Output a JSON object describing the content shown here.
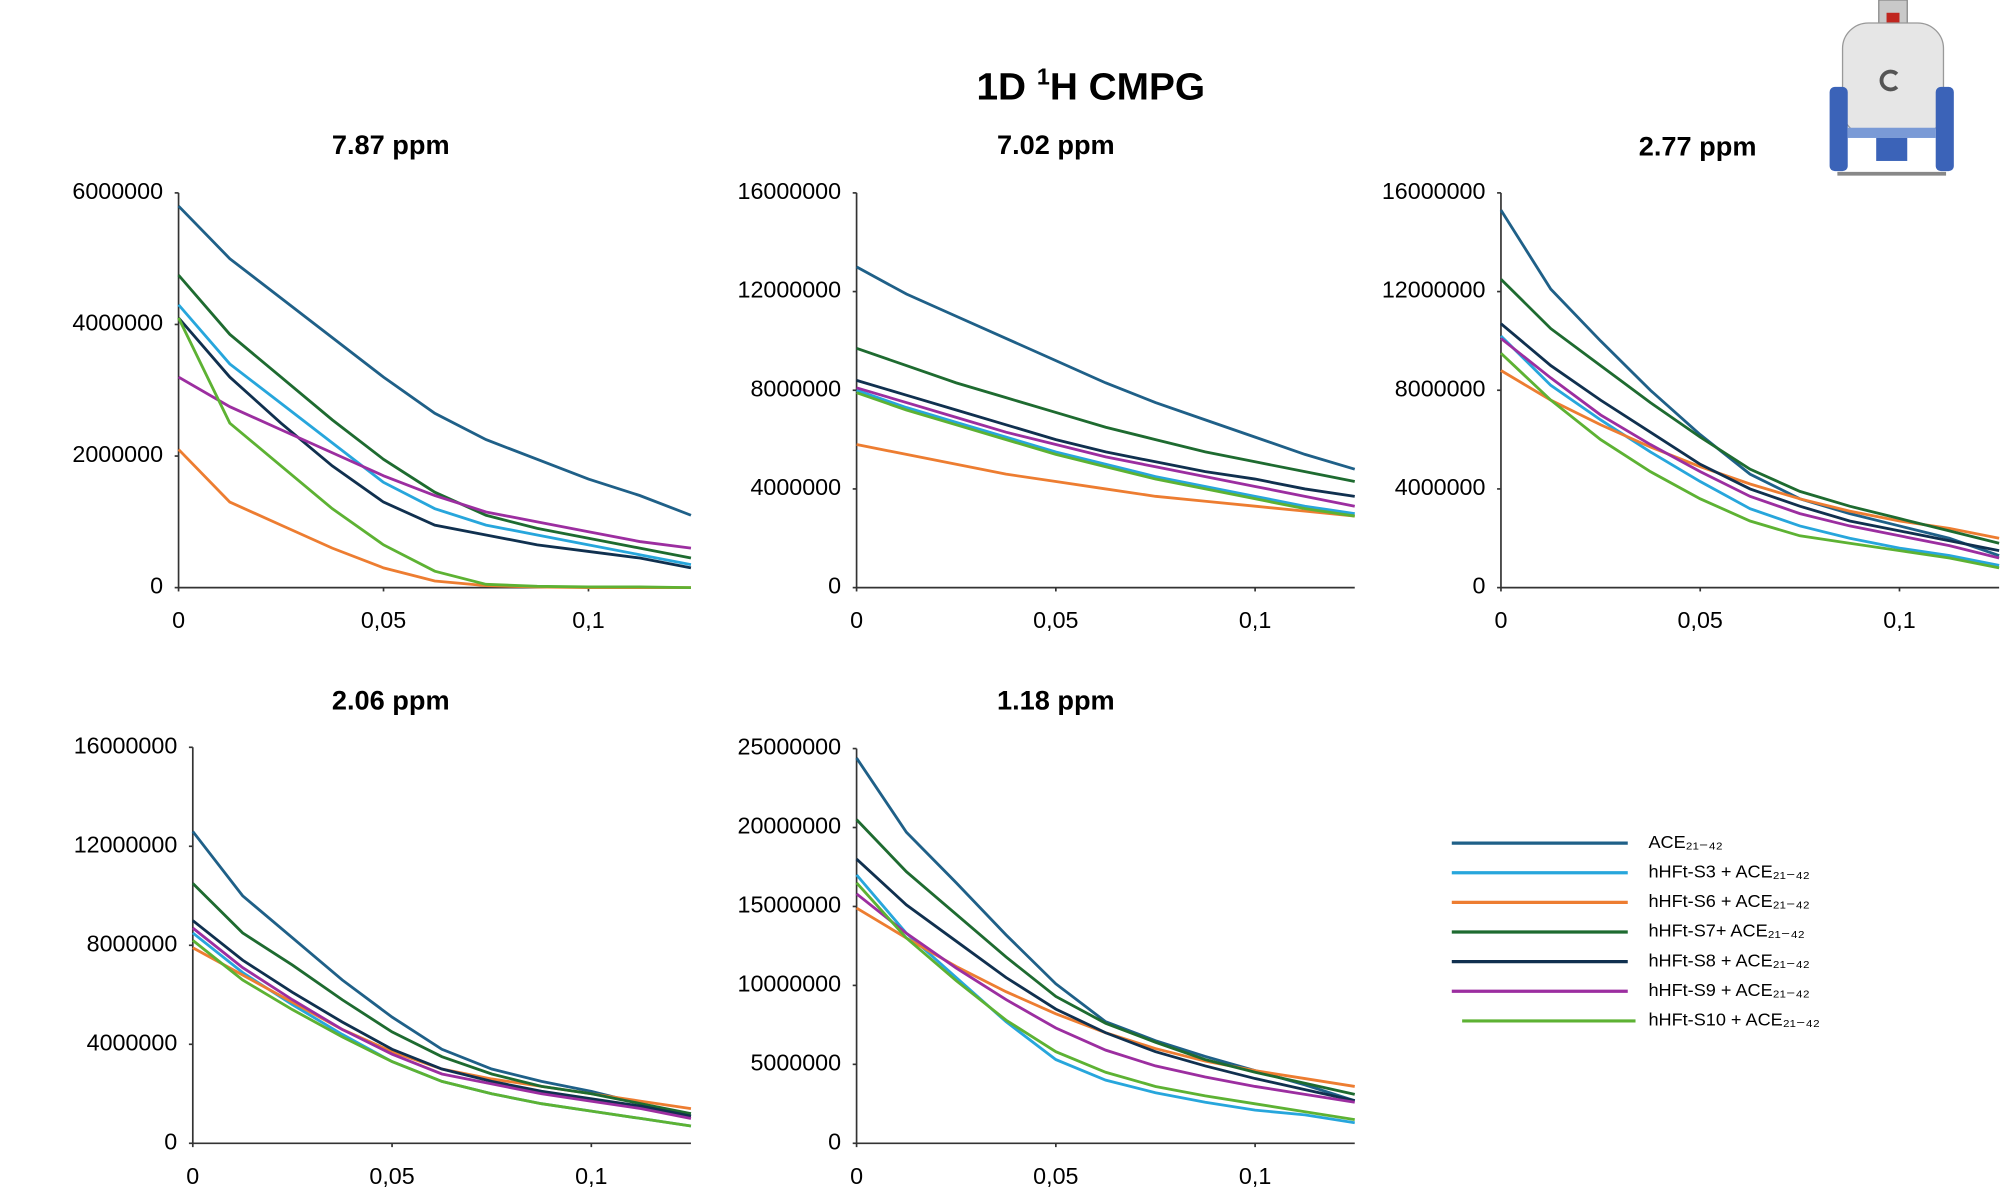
{
  "heading": [
    "1D ",
    "1",
    "H CMPG"
  ],
  "chart_data": [
    {
      "type": "line",
      "title": "7.87 ppm",
      "x": [
        0,
        0.0125,
        0.025,
        0.0375,
        0.05,
        0.0625,
        0.075,
        0.0875,
        0.1,
        0.1125,
        0.125
      ],
      "xlim": [
        0,
        0.125
      ],
      "xticks": [
        0,
        {
          "value": 0.05,
          "label": "0,05"
        },
        {
          "value": 0.1,
          "label": "0,1"
        }
      ],
      "ylim": [
        0,
        6000000
      ],
      "yticks": [
        0,
        2000000,
        4000000,
        6000000
      ],
      "series": [
        {
          "name": "ACE₂₁₋₄₂",
          "color": "#1f6088",
          "values": [
            5800000,
            5000000,
            4400000,
            3800000,
            3200000,
            2650000,
            2250000,
            1950000,
            1650000,
            1400000,
            1100000
          ]
        },
        {
          "name": "hHFt-S3 + ACE₂₁₋₄₂",
          "color": "#27a6dc",
          "values": [
            4300000,
            3400000,
            2800000,
            2200000,
            1600000,
            1200000,
            950000,
            800000,
            650000,
            500000,
            350000
          ]
        },
        {
          "name": "hHFt-S6 + ACE₂₁₋₄₂",
          "color": "#ed7d31",
          "values": [
            2100000,
            1300000,
            950000,
            600000,
            300000,
            100000,
            30000,
            10000,
            0,
            0,
            0
          ]
        },
        {
          "name": "hHFt-S7+ ACE₂₁₋₄₂",
          "color": "#1e6b30",
          "values": [
            4750000,
            3850000,
            3200000,
            2550000,
            1950000,
            1450000,
            1100000,
            900000,
            750000,
            600000,
            450000
          ]
        },
        {
          "name": "hHFt-S8 + ACE₂₁₋₄₂",
          "color": "#10304f",
          "values": [
            4100000,
            3200000,
            2500000,
            1850000,
            1300000,
            950000,
            800000,
            650000,
            550000,
            450000,
            300000
          ]
        },
        {
          "name": "hHFt-S9 + ACE₂₁₋₄₂",
          "color": "#9c2ea0",
          "values": [
            3200000,
            2750000,
            2400000,
            2050000,
            1700000,
            1400000,
            1150000,
            1000000,
            850000,
            700000,
            600000
          ]
        },
        {
          "name": "hHFt-S10 + ACE₂₁₋₄₂",
          "color": "#5db233",
          "values": [
            4100000,
            2500000,
            1850000,
            1200000,
            650000,
            250000,
            50000,
            20000,
            10000,
            10000,
            0
          ]
        }
      ]
    },
    {
      "type": "line",
      "title": "7.02 ppm",
      "x": [
        0,
        0.0125,
        0.025,
        0.0375,
        0.05,
        0.0625,
        0.075,
        0.0875,
        0.1,
        0.1125,
        0.125
      ],
      "xlim": [
        0,
        0.125
      ],
      "xticks": [
        0,
        {
          "value": 0.05,
          "label": "0,05"
        },
        {
          "value": 0.1,
          "label": "0,1"
        }
      ],
      "ylim": [
        0,
        16000000
      ],
      "yticks": [
        0,
        4000000,
        8000000,
        12000000,
        16000000
      ],
      "series": [
        {
          "color": "#1f6088",
          "values": [
            13000000,
            11900000,
            11000000,
            10100000,
            9200000,
            8300000,
            7500000,
            6800000,
            6100000,
            5400000,
            4800000
          ]
        },
        {
          "color": "#27a6dc",
          "values": [
            8000000,
            7300000,
            6700000,
            6100000,
            5500000,
            5000000,
            4500000,
            4100000,
            3700000,
            3300000,
            3000000
          ]
        },
        {
          "color": "#ed7d31",
          "values": [
            5800000,
            5400000,
            5000000,
            4600000,
            4300000,
            4000000,
            3700000,
            3500000,
            3300000,
            3100000,
            2900000
          ]
        },
        {
          "color": "#1e6b30",
          "values": [
            9700000,
            9000000,
            8300000,
            7700000,
            7100000,
            6500000,
            6000000,
            5500000,
            5100000,
            4700000,
            4300000
          ]
        },
        {
          "color": "#10304f",
          "values": [
            8400000,
            7800000,
            7200000,
            6600000,
            6000000,
            5500000,
            5100000,
            4700000,
            4400000,
            4000000,
            3700000
          ]
        },
        {
          "color": "#9c2ea0",
          "values": [
            8100000,
            7500000,
            6900000,
            6300000,
            5800000,
            5300000,
            4900000,
            4500000,
            4100000,
            3700000,
            3300000
          ]
        },
        {
          "color": "#5db233",
          "values": [
            7900000,
            7200000,
            6600000,
            6000000,
            5400000,
            4900000,
            4400000,
            4000000,
            3600000,
            3200000,
            2900000
          ]
        }
      ]
    },
    {
      "type": "line",
      "title": "2.77 ppm",
      "x": [
        0,
        0.0125,
        0.025,
        0.0375,
        0.05,
        0.0625,
        0.075,
        0.0875,
        0.1,
        0.1125,
        0.125
      ],
      "xlim": [
        0,
        0.125
      ],
      "xticks": [
        0,
        {
          "value": 0.05,
          "label": "0,05"
        },
        {
          "value": 0.1,
          "label": "0,1"
        }
      ],
      "ylim": [
        0,
        16000000
      ],
      "yticks": [
        0,
        4000000,
        8000000,
        12000000,
        16000000
      ],
      "series": [
        {
          "color": "#1f6088",
          "values": [
            15300000,
            12100000,
            10000000,
            8000000,
            6200000,
            4600000,
            3600000,
            3000000,
            2500000,
            2000000,
            1300000
          ]
        },
        {
          "color": "#27a6dc",
          "values": [
            10200000,
            8200000,
            6800000,
            5500000,
            4300000,
            3200000,
            2500000,
            2000000,
            1600000,
            1300000,
            900000
          ]
        },
        {
          "color": "#ed7d31",
          "values": [
            8800000,
            7600000,
            6600000,
            5700000,
            4900000,
            4200000,
            3600000,
            3100000,
            2700000,
            2400000,
            2000000
          ]
        },
        {
          "color": "#1e6b30",
          "values": [
            12500000,
            10500000,
            9000000,
            7500000,
            6100000,
            4800000,
            3900000,
            3300000,
            2800000,
            2300000,
            1800000
          ]
        },
        {
          "color": "#10304f",
          "values": [
            10700000,
            9000000,
            7600000,
            6300000,
            5000000,
            4000000,
            3300000,
            2700000,
            2300000,
            1900000,
            1500000
          ]
        },
        {
          "color": "#9c2ea0",
          "values": [
            10100000,
            8500000,
            7000000,
            5800000,
            4700000,
            3700000,
            3000000,
            2500000,
            2100000,
            1700000,
            1200000
          ]
        },
        {
          "color": "#5db233",
          "values": [
            9500000,
            7600000,
            6000000,
            4700000,
            3600000,
            2700000,
            2100000,
            1800000,
            1500000,
            1200000,
            800000
          ]
        }
      ]
    },
    {
      "type": "line",
      "title": "2.06 ppm",
      "x": [
        0,
        0.0125,
        0.025,
        0.0375,
        0.05,
        0.0625,
        0.075,
        0.0875,
        0.1,
        0.1125,
        0.125
      ],
      "xlim": [
        0,
        0.125
      ],
      "xticks": [
        0,
        {
          "value": 0.05,
          "label": "0,05"
        },
        {
          "value": 0.1,
          "label": "0,1"
        }
      ],
      "ylim": [
        0,
        16000000
      ],
      "yticks": [
        0,
        4000000,
        8000000,
        12000000,
        16000000
      ],
      "series": [
        {
          "color": "#1f6088",
          "values": [
            12600000,
            10000000,
            8300000,
            6600000,
            5100000,
            3800000,
            3000000,
            2500000,
            2100000,
            1600000,
            1100000
          ]
        },
        {
          "color": "#27a6dc",
          "values": [
            8500000,
            6900000,
            5600000,
            4400000,
            3300000,
            2500000,
            2000000,
            1600000,
            1300000,
            1000000,
            700000
          ]
        },
        {
          "color": "#ed7d31",
          "values": [
            7900000,
            6800000,
            5700000,
            4600000,
            3700000,
            3000000,
            2600000,
            2300000,
            2000000,
            1700000,
            1400000
          ]
        },
        {
          "color": "#1e6b30",
          "values": [
            10500000,
            8500000,
            7200000,
            5800000,
            4500000,
            3500000,
            2800000,
            2300000,
            2000000,
            1600000,
            1200000
          ]
        },
        {
          "color": "#10304f",
          "values": [
            9000000,
            7400000,
            6100000,
            4900000,
            3800000,
            3000000,
            2500000,
            2100000,
            1800000,
            1500000,
            1100000
          ]
        },
        {
          "color": "#9c2ea0",
          "values": [
            8700000,
            7100000,
            5800000,
            4600000,
            3600000,
            2800000,
            2400000,
            2000000,
            1700000,
            1400000,
            1000000
          ]
        },
        {
          "color": "#5db233",
          "values": [
            8200000,
            6600000,
            5400000,
            4300000,
            3300000,
            2500000,
            2000000,
            1600000,
            1300000,
            1000000,
            700000
          ]
        }
      ]
    },
    {
      "type": "line",
      "title": "1.18 ppm",
      "x": [
        0,
        0.0125,
        0.025,
        0.0375,
        0.05,
        0.0625,
        0.075,
        0.0875,
        0.1,
        0.1125,
        0.125
      ],
      "xlim": [
        0,
        0.125
      ],
      "xticks": [
        0,
        {
          "value": 0.05,
          "label": "0,05"
        },
        {
          "value": 0.1,
          "label": "0,1"
        }
      ],
      "ylim": [
        0,
        25000000
      ],
      "yticks": [
        0,
        5000000,
        10000000,
        15000000,
        20000000,
        25000000
      ],
      "series": [
        {
          "color": "#1f6088",
          "values": [
            24400000,
            19700000,
            16500000,
            13200000,
            10100000,
            7700000,
            6500000,
            5500000,
            4600000,
            3700000,
            2700000
          ]
        },
        {
          "color": "#27a6dc",
          "values": [
            17000000,
            13300000,
            10500000,
            7700000,
            5300000,
            4000000,
            3200000,
            2600000,
            2100000,
            1800000,
            1300000
          ]
        },
        {
          "color": "#ed7d31",
          "values": [
            14900000,
            13000000,
            11200000,
            9600000,
            8200000,
            7000000,
            6000000,
            5200000,
            4600000,
            4100000,
            3600000
          ]
        },
        {
          "color": "#1e6b30",
          "values": [
            20500000,
            17200000,
            14500000,
            11800000,
            9300000,
            7600000,
            6400000,
            5300000,
            4500000,
            3800000,
            3100000
          ]
        },
        {
          "color": "#10304f",
          "values": [
            18000000,
            15100000,
            12800000,
            10500000,
            8500000,
            7000000,
            5800000,
            4900000,
            4100000,
            3400000,
            2700000
          ]
        },
        {
          "color": "#9c2ea0",
          "values": [
            15800000,
            13300000,
            11100000,
            9100000,
            7300000,
            5900000,
            4900000,
            4200000,
            3600000,
            3100000,
            2600000
          ]
        },
        {
          "color": "#5db233",
          "values": [
            16500000,
            13000000,
            10300000,
            7800000,
            5800000,
            4500000,
            3600000,
            3000000,
            2500000,
            2000000,
            1500000
          ]
        }
      ]
    }
  ]
}
